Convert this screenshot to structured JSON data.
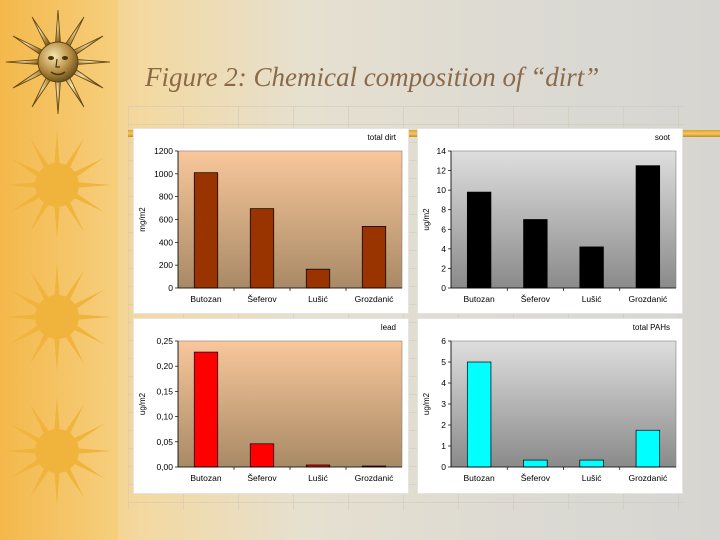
{
  "slide": {
    "title": "Figure 2: Chemical composition of “dirt”"
  },
  "chart_data": [
    {
      "type": "bar",
      "title": "total dirt",
      "ylabel": "mg/m2",
      "categories": [
        "Butozan",
        "Šeferov",
        "Lušić",
        "Grozdanić"
      ],
      "values": [
        1010,
        695,
        165,
        540
      ],
      "ylim": [
        0,
        1200
      ],
      "ticks": [
        "0",
        "200",
        "400",
        "600",
        "800",
        "1000",
        "1200"
      ],
      "bar_color": "#993300",
      "plot_background": "peach-gradient",
      "grid": false
    },
    {
      "type": "bar",
      "title": "soot",
      "ylabel": "ug/m2",
      "categories": [
        "Butozan",
        "Šeferov",
        "Lušić",
        "Grozdanić"
      ],
      "values": [
        9.8,
        7.0,
        4.2,
        12.5
      ],
      "ylim": [
        0,
        14
      ],
      "ticks": [
        "0",
        "2",
        "4",
        "6",
        "8",
        "10",
        "12",
        "14"
      ],
      "bar_color": "#000000",
      "plot_background": "gray-gradient",
      "grid": false
    },
    {
      "type": "bar",
      "title": "lead",
      "ylabel": "ug/m2",
      "categories": [
        "Butozan",
        "Šeferov",
        "Lušić",
        "Grozdanić"
      ],
      "values": [
        0.228,
        0.046,
        0.004,
        0.002
      ],
      "ylim": [
        0,
        0.25
      ],
      "ticks": [
        "0,00",
        "0,05",
        "0,10",
        "0,15",
        "0,20",
        "0,25"
      ],
      "bar_color": "#ff0000",
      "plot_background": "peach-gradient",
      "grid": false
    },
    {
      "type": "bar",
      "title": "total PAHs",
      "ylabel": "ug/m2",
      "categories": [
        "Butozan",
        "Šeferov",
        "Lušić",
        "Grozdanić"
      ],
      "values": [
        5.0,
        0.33,
        0.33,
        1.75
      ],
      "ylim": [
        0,
        6
      ],
      "ticks": [
        "0",
        "1",
        "2",
        "3",
        "4",
        "5",
        "6"
      ],
      "bar_color": "#00ffff",
      "plot_background": "gray-gradient",
      "grid": false
    }
  ]
}
